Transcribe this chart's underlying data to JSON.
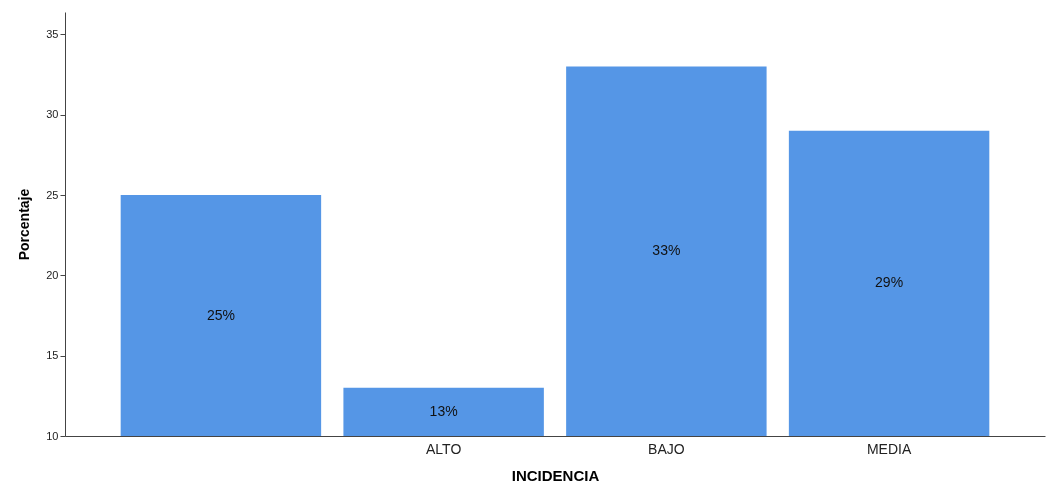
{
  "chart_data": {
    "type": "bar",
    "xlabel": "INCIDENCIA",
    "ylabel": "Porcentaje",
    "categories": [
      null,
      "ALTO",
      "BAJO",
      "MEDIA"
    ],
    "values": [
      25,
      13,
      33,
      29
    ],
    "value_labels": [
      "25%",
      "13%",
      "33%",
      "29%"
    ],
    "color": "#5596e6",
    "ylim": [
      10,
      36.4
    ],
    "yticks": [
      10,
      15,
      20,
      25,
      30,
      35
    ],
    "grid": false
  }
}
